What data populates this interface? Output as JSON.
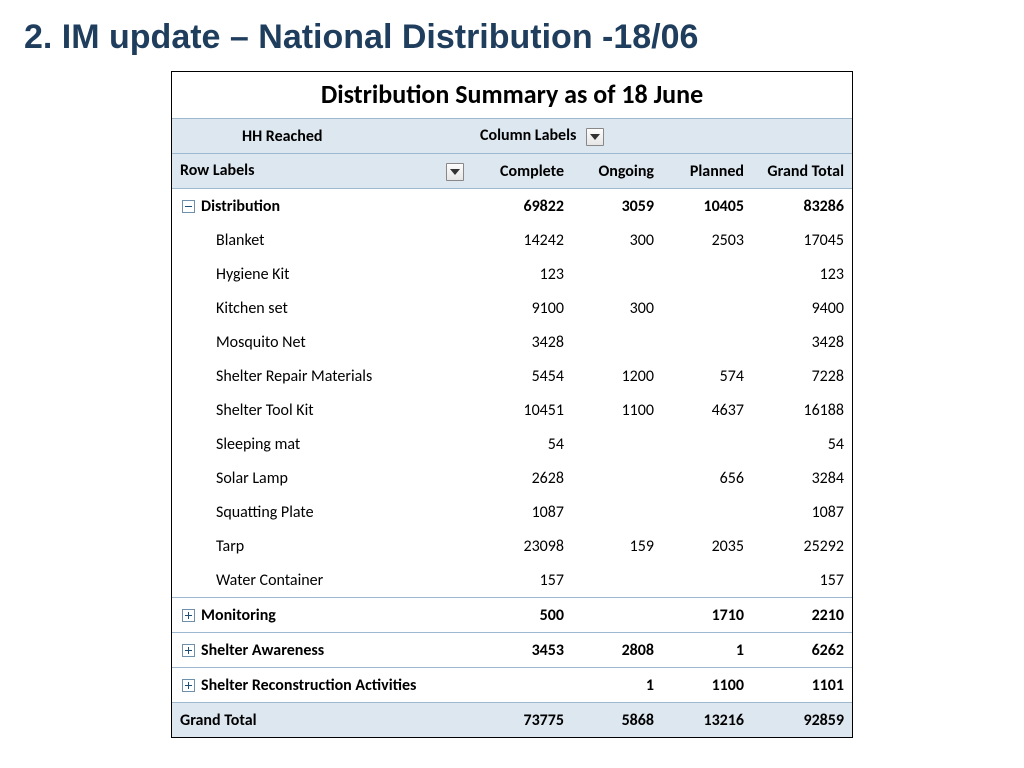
{
  "slide_title": "2. IM update – National Distribution -18/06",
  "pivot": {
    "title": "Distribution Summary as of 18 June",
    "title_fontsize": 26,
    "header_band": {
      "hh_reached": "HH Reached",
      "column_labels": "Column Labels"
    },
    "row_labels_header": "Row Labels",
    "columns": [
      "Complete",
      "Ongoing",
      "Planned",
      "Grand Total"
    ],
    "column_alignment": [
      "right",
      "right",
      "right",
      "right"
    ],
    "groups": [
      {
        "label": "Distribution",
        "expanded": true,
        "values": {
          "complete": "69822",
          "ongoing": "3059",
          "planned": "10405",
          "grand_total": "83286"
        },
        "children": [
          {
            "label": "Blanket",
            "values": {
              "complete": "14242",
              "ongoing": "300",
              "planned": "2503",
              "grand_total": "17045"
            }
          },
          {
            "label": "Hygiene Kit",
            "values": {
              "complete": "123",
              "ongoing": "",
              "planned": "",
              "grand_total": "123"
            }
          },
          {
            "label": "Kitchen set",
            "values": {
              "complete": "9100",
              "ongoing": "300",
              "planned": "",
              "grand_total": "9400"
            }
          },
          {
            "label": "Mosquito Net",
            "values": {
              "complete": "3428",
              "ongoing": "",
              "planned": "",
              "grand_total": "3428"
            }
          },
          {
            "label": "Shelter Repair Materials",
            "values": {
              "complete": "5454",
              "ongoing": "1200",
              "planned": "574",
              "grand_total": "7228"
            }
          },
          {
            "label": "Shelter Tool Kit",
            "values": {
              "complete": "10451",
              "ongoing": "1100",
              "planned": "4637",
              "grand_total": "16188"
            }
          },
          {
            "label": "Sleeping mat",
            "values": {
              "complete": "54",
              "ongoing": "",
              "planned": "",
              "grand_total": "54"
            }
          },
          {
            "label": "Solar Lamp",
            "values": {
              "complete": "2628",
              "ongoing": "",
              "planned": "656",
              "grand_total": "3284"
            }
          },
          {
            "label": "Squatting Plate",
            "values": {
              "complete": "1087",
              "ongoing": "",
              "planned": "",
              "grand_total": "1087"
            }
          },
          {
            "label": "Tarp",
            "values": {
              "complete": "23098",
              "ongoing": "159",
              "planned": "2035",
              "grand_total": "25292"
            }
          },
          {
            "label": "Water Container",
            "values": {
              "complete": "157",
              "ongoing": "",
              "planned": "",
              "grand_total": "157"
            }
          }
        ]
      },
      {
        "label": "Monitoring",
        "expanded": false,
        "values": {
          "complete": "500",
          "ongoing": "",
          "planned": "1710",
          "grand_total": "2210"
        }
      },
      {
        "label": "Shelter Awareness",
        "expanded": false,
        "values": {
          "complete": "3453",
          "ongoing": "2808",
          "planned": "1",
          "grand_total": "6262"
        }
      },
      {
        "label": "Shelter Reconstruction Activities",
        "expanded": false,
        "values": {
          "complete": "",
          "ongoing": "1",
          "planned": "1100",
          "grand_total": "1101"
        }
      }
    ],
    "grand_total": {
      "label": "Grand Total",
      "values": {
        "complete": "73775",
        "ongoing": "5868",
        "planned": "13216",
        "grand_total": "92859"
      }
    },
    "style": {
      "header_bg": "#dde7f0",
      "border_color": "#9db8d0",
      "outer_border": "#000000",
      "font_family": "Calibri",
      "body_fontsize": 16,
      "slide_title_color": "#1f3d5c",
      "slide_title_fontsize": 34
    }
  }
}
